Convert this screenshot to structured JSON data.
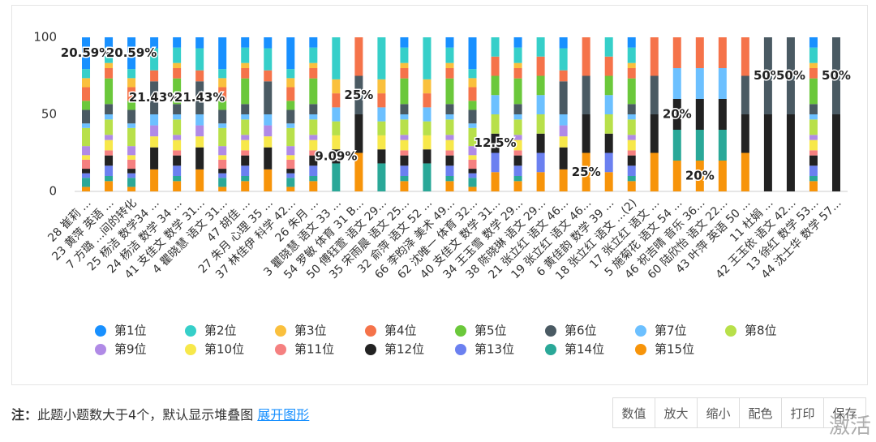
{
  "chart_data": {
    "type": "stacked_bar",
    "categories": [
      "28 崔莉 ...",
      "23 黄萍 英语 ...",
      "7 方璐 ...间的转化",
      "25 杨洁 数学34 ...",
      "24 杨洁 数学 34 ...",
      "41 支佳文 数学 31...",
      "4 瞿晓慧 语文 31...",
      "47 胡佳 ...",
      "27 朱月 心理 35 ...",
      "37 林佳伊 科学 42...",
      "26 朱月 ...",
      "3 瞿晓慧 语文 33 ...",
      "54 罗敏 体育 31 B...",
      "50 傅钰萱 语文 29...",
      "35 宋雨晨 语文 25...",
      "32 俞萍 语文 52 ...",
      "66 李昀泽 美术 49...",
      "62 沈唯一 体育 32...",
      "40 支佳文 数学 31...",
      "34 王玉雪 数学 29...",
      "38 陈晓琳 语文 29...",
      "21 张立红 语文 46...",
      "19 张立红 语文 46...",
      "6 黄佳韵 数学 39 ...",
      "18 张立红 语文 ...(2)",
      "17 张立红 语文 ...",
      "5 施菊花 语文 54 ...",
      "46 祝吉晴 音乐 36...",
      "60 陆欣怡 语文 22...",
      "43 叶萍 英语 50 ...",
      "11 杜娟 ...",
      "42 王玉依 语文 42...",
      "13 徐红 数学 53...",
      "44 沈士华 数学 57..."
    ],
    "ylim": [
      0,
      100
    ],
    "yticks": [
      0,
      50,
      100
    ],
    "grid": false,
    "series": [
      {
        "name": "第1位",
        "color": "#1890ff",
        "values": [
          20.59,
          6.67,
          20.59,
          7.14,
          6.67,
          7.14,
          20.59,
          6.67,
          7.14,
          20.59,
          6.67,
          0,
          0,
          0,
          6.67,
          0,
          6.67,
          20.59,
          0,
          6.67,
          0,
          7.14,
          0,
          0,
          6.67,
          0,
          0,
          0,
          0,
          0,
          0,
          0,
          6.67,
          0
        ],
        "value_labels": [
          "20.59%",
          null,
          "20.59%",
          null,
          null,
          null,
          null,
          null,
          null,
          null,
          null,
          null,
          null,
          null,
          null,
          null,
          null,
          null,
          null,
          null,
          null,
          null,
          null,
          null,
          null,
          null,
          null,
          null,
          null,
          null,
          null,
          null,
          null,
          null
        ]
      },
      {
        "name": "第2位",
        "color": "#36cfc9",
        "values": [
          5.88,
          10,
          5.88,
          14.29,
          10,
          14.29,
          5.88,
          10,
          14.29,
          5.88,
          10,
          27.27,
          0,
          27.27,
          10,
          27.27,
          10,
          5.88,
          12.5,
          10,
          12.5,
          14.29,
          0,
          12.5,
          10,
          0,
          0,
          0,
          0,
          0,
          0,
          0,
          10,
          0
        ]
      },
      {
        "name": "第3位",
        "color": "#fac03d",
        "values": [
          5.88,
          3.33,
          5.88,
          0,
          3.33,
          0,
          5.88,
          3.33,
          0,
          5.88,
          3.33,
          9.09,
          0,
          9.09,
          3.33,
          9.09,
          3.33,
          5.88,
          0,
          3.33,
          0,
          0,
          0,
          0,
          3.33,
          0,
          0,
          0,
          0,
          0,
          0,
          0,
          3.33,
          0
        ]
      },
      {
        "name": "第4位",
        "color": "#f5734a",
        "values": [
          8.82,
          6.67,
          8.82,
          7.14,
          6.67,
          7.14,
          8.82,
          6.67,
          7.14,
          8.82,
          6.67,
          9.09,
          25,
          9.09,
          6.67,
          9.09,
          6.67,
          8.82,
          12.5,
          6.67,
          12.5,
          7.14,
          25,
          12.5,
          6.67,
          25,
          20,
          20,
          20,
          25,
          0,
          0,
          6.67,
          0
        ]
      },
      {
        "name": "第5位",
        "color": "#6bc83b",
        "values": [
          5.88,
          16.67,
          5.88,
          0,
          16.67,
          0,
          5.88,
          16.67,
          0,
          5.88,
          16.67,
          0,
          0,
          0,
          16.67,
          0,
          16.67,
          5.88,
          12.5,
          16.67,
          12.5,
          0,
          0,
          12.5,
          16.67,
          0,
          0,
          0,
          0,
          0,
          0,
          0,
          16.67,
          0
        ]
      },
      {
        "name": "第6位",
        "color": "#4a5a63",
        "values": [
          8.82,
          6.67,
          8.82,
          21.43,
          6.67,
          21.43,
          8.82,
          6.67,
          21.43,
          8.82,
          6.67,
          0,
          25,
          0,
          6.67,
          0,
          6.67,
          8.82,
          0,
          6.67,
          0,
          21.43,
          25,
          0,
          6.67,
          25,
          0,
          0,
          0,
          25,
          50,
          50,
          6.67,
          50
        ],
        "value_labels": [
          null,
          null,
          null,
          "21.43%",
          null,
          "21.43%",
          null,
          null,
          null,
          null,
          null,
          null,
          "25%",
          null,
          null,
          null,
          null,
          null,
          null,
          null,
          null,
          null,
          null,
          null,
          null,
          null,
          null,
          null,
          null,
          null,
          "50%",
          "50%",
          null,
          "50%"
        ]
      },
      {
        "name": "第7位",
        "color": "#6cc0ff",
        "values": [
          2.94,
          3.33,
          2.94,
          7.14,
          3.33,
          7.14,
          2.94,
          3.33,
          7.14,
          2.94,
          3.33,
          9.09,
          0,
          9.09,
          3.33,
          9.09,
          3.33,
          2.94,
          12.5,
          3.33,
          12.5,
          7.14,
          0,
          12.5,
          3.33,
          0,
          20,
          20,
          20,
          0,
          0,
          0,
          3.33,
          0
        ]
      },
      {
        "name": "第8位",
        "color": "#b8e04a",
        "values": [
          11.76,
          10,
          11.76,
          0,
          10,
          0,
          11.76,
          10,
          0,
          11.76,
          10,
          9.09,
          0,
          9.09,
          10,
          9.09,
          10,
          11.76,
          12.5,
          10,
          12.5,
          0,
          0,
          12.5,
          10,
          0,
          0,
          0,
          0,
          0,
          0,
          0,
          10,
          0
        ]
      },
      {
        "name": "第9位",
        "color": "#b08ae6",
        "values": [
          5.88,
          3.33,
          5.88,
          7.14,
          3.33,
          7.14,
          5.88,
          3.33,
          7.14,
          5.88,
          3.33,
          0,
          0,
          0,
          3.33,
          0,
          3.33,
          5.88,
          0,
          3.33,
          0,
          7.14,
          0,
          0,
          3.33,
          0,
          0,
          0,
          0,
          0,
          0,
          0,
          3.33,
          0
        ]
      },
      {
        "name": "第10位",
        "color": "#f7e84a",
        "values": [
          2.94,
          6.67,
          2.94,
          7.14,
          6.67,
          7.14,
          2.94,
          6.67,
          7.14,
          2.94,
          6.67,
          9.09,
          0,
          9.09,
          6.67,
          9.09,
          6.67,
          2.94,
          0,
          6.67,
          0,
          7.14,
          0,
          0,
          6.67,
          0,
          0,
          0,
          0,
          0,
          0,
          0,
          6.67,
          0
        ]
      },
      {
        "name": "第11位",
        "color": "#f58080",
        "values": [
          5.88,
          3.33,
          5.88,
          0,
          3.33,
          0,
          5.88,
          3.33,
          0,
          5.88,
          3.33,
          0,
          0,
          0,
          3.33,
          0,
          3.33,
          5.88,
          0,
          3.33,
          0,
          0,
          0,
          0,
          3.33,
          0,
          0,
          0,
          0,
          0,
          0,
          0,
          3.33,
          0
        ]
      },
      {
        "name": "第12位",
        "color": "#222222",
        "values": [
          2.94,
          6.67,
          2.94,
          14.29,
          6.67,
          14.29,
          2.94,
          6.67,
          14.29,
          2.94,
          6.67,
          9.09,
          25,
          9.09,
          6.67,
          9.09,
          6.67,
          2.94,
          12.5,
          6.67,
          12.5,
          14.29,
          25,
          12.5,
          6.67,
          25,
          20,
          20,
          20,
          25,
          50,
          50,
          6.67,
          50
        ],
        "value_labels": [
          null,
          null,
          null,
          null,
          null,
          null,
          null,
          null,
          null,
          null,
          null,
          "9.09%",
          null,
          null,
          null,
          null,
          null,
          null,
          "12.5%",
          null,
          null,
          null,
          null,
          null,
          null,
          null,
          "20%",
          null,
          null,
          null,
          null,
          null,
          null,
          null
        ]
      },
      {
        "name": "第13位",
        "color": "#6b80f0",
        "values": [
          2.94,
          6.67,
          2.94,
          0,
          6.67,
          0,
          2.94,
          6.67,
          0,
          2.94,
          6.67,
          0,
          0,
          0,
          6.67,
          0,
          6.67,
          2.94,
          12.5,
          6.67,
          12.5,
          0,
          0,
          12.5,
          6.67,
          0,
          0,
          0,
          0,
          0,
          0,
          0,
          6.67,
          0
        ]
      },
      {
        "name": "第14位",
        "color": "#2aa898",
        "values": [
          5.88,
          3.33,
          5.88,
          0,
          3.33,
          0,
          5.88,
          3.33,
          0,
          5.88,
          3.33,
          18.18,
          0,
          18.18,
          3.33,
          18.18,
          3.33,
          5.88,
          0,
          3.33,
          0,
          0,
          0,
          0,
          3.33,
          0,
          20,
          20,
          20,
          0,
          0,
          0,
          3.33,
          0
        ]
      },
      {
        "name": "第15位",
        "color": "#f7940a",
        "values": [
          2.94,
          6.67,
          2.94,
          14.29,
          6.67,
          14.29,
          2.94,
          6.67,
          14.29,
          2.94,
          6.67,
          0,
          25,
          0,
          6.67,
          0,
          6.67,
          2.94,
          12.5,
          6.67,
          12.5,
          14.29,
          25,
          12.5,
          6.67,
          25,
          20,
          20,
          20,
          25,
          0,
          0,
          6.67,
          0
        ],
        "value_labels": [
          null,
          null,
          null,
          null,
          null,
          null,
          null,
          null,
          null,
          null,
          null,
          null,
          null,
          null,
          null,
          null,
          null,
          null,
          null,
          null,
          null,
          null,
          "25%",
          null,
          null,
          null,
          null,
          "20%",
          null,
          null,
          null,
          null,
          null,
          null
        ]
      }
    ]
  },
  "footer": {
    "note_label": "注：",
    "note": "此题小题数大于4个，默认显示堆叠图",
    "link": "展开图形"
  },
  "toolbar": [
    "数值",
    "放大",
    "缩小",
    "配色",
    "打印",
    "保存"
  ],
  "watermark": "激活"
}
